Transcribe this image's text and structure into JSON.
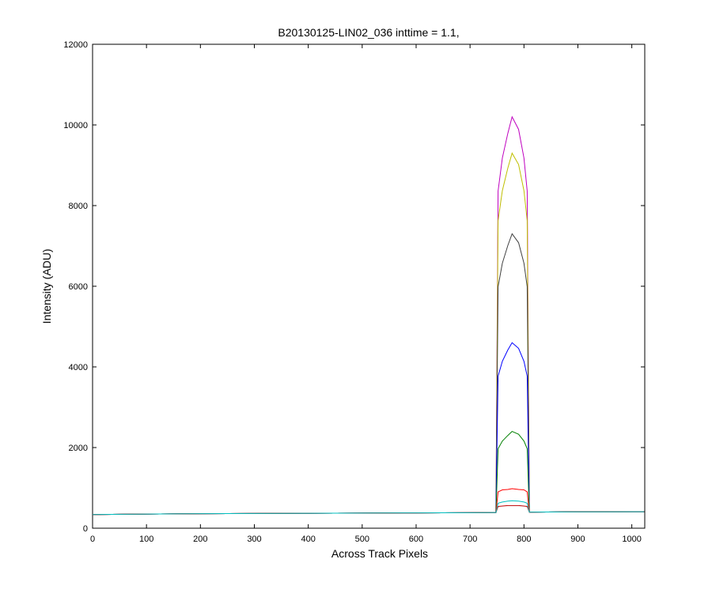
{
  "chart_data": {
    "type": "line",
    "title": "B20130125-LIN02_036 inttime = 1.1,",
    "x_label": "Across Track Pixels",
    "y_label": "Intensity (ADU)",
    "x": [
      0,
      100,
      200,
      300,
      400,
      500,
      600,
      700,
      745,
      748,
      752,
      760,
      770,
      778,
      790,
      800,
      806,
      810,
      815,
      900,
      1000,
      1023
    ],
    "series": [
      {
        "color": "#bf00bf",
        "values": [
          340,
          350,
          360,
          365,
          370,
          375,
          380,
          385,
          390,
          390,
          8360,
          9180,
          9790,
          10200,
          9890,
          9180,
          8360,
          400,
          400,
          405,
          410,
          410
        ]
      },
      {
        "color": "#bfbf00",
        "values": [
          340,
          350,
          360,
          365,
          370,
          375,
          380,
          385,
          390,
          390,
          7630,
          8370,
          8930,
          9300,
          9020,
          8370,
          7630,
          400,
          400,
          405,
          410,
          410
        ]
      },
      {
        "color": "#404040",
        "values": [
          340,
          350,
          360,
          365,
          370,
          375,
          380,
          385,
          390,
          390,
          5990,
          6570,
          7010,
          7300,
          7080,
          6570,
          5990,
          400,
          400,
          405,
          410,
          410
        ]
      },
      {
        "color": "#0000ff",
        "values": [
          340,
          350,
          360,
          365,
          370,
          375,
          380,
          385,
          390,
          390,
          3770,
          4140,
          4420,
          4600,
          4460,
          4140,
          3770,
          400,
          400,
          405,
          410,
          410
        ]
      },
      {
        "color": "#008000",
        "values": [
          340,
          350,
          360,
          365,
          370,
          375,
          380,
          385,
          390,
          390,
          1970,
          2160,
          2300,
          2400,
          2330,
          2160,
          1970,
          400,
          400,
          405,
          410,
          410
        ]
      },
      {
        "color": "#ff0000",
        "values": [
          340,
          350,
          360,
          365,
          370,
          375,
          380,
          385,
          390,
          390,
          900,
          950,
          960,
          980,
          960,
          950,
          900,
          400,
          400,
          405,
          410,
          410
        ]
      },
      {
        "color": "#bf0000",
        "values": [
          340,
          350,
          360,
          365,
          370,
          375,
          380,
          385,
          390,
          390,
          540,
          550,
          560,
          560,
          560,
          550,
          540,
          400,
          400,
          405,
          410,
          410
        ]
      },
      {
        "color": "#00bfbf",
        "values": [
          340,
          350,
          360,
          365,
          370,
          375,
          380,
          385,
          390,
          390,
          620,
          650,
          670,
          680,
          670,
          650,
          620,
          400,
          400,
          405,
          410,
          410
        ]
      }
    ],
    "xlim": [
      0,
      1024
    ],
    "xticks": [
      0,
      100,
      200,
      300,
      400,
      500,
      600,
      700,
      800,
      900,
      1000
    ],
    "ylim": [
      0,
      12000
    ],
    "yticks": [
      0,
      2000,
      4000,
      6000,
      8000,
      10000,
      12000
    ],
    "grid": false
  }
}
